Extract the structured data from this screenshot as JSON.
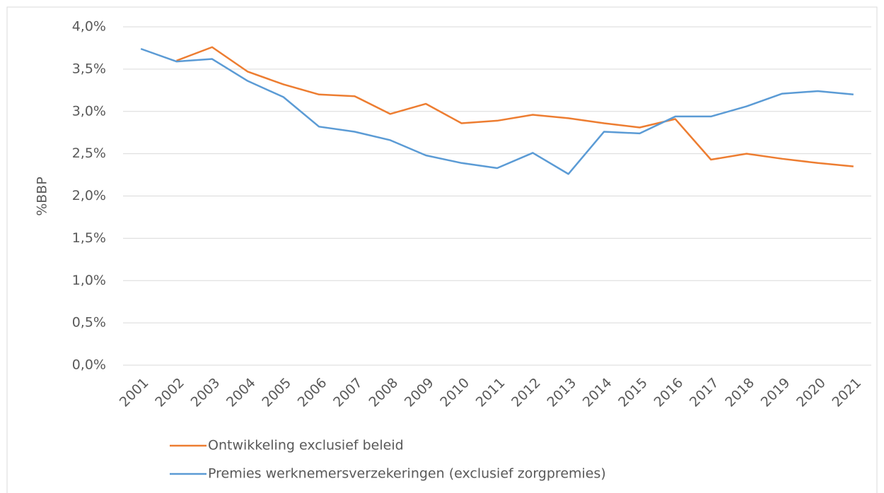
{
  "chart_data": {
    "type": "line",
    "y_label": "%BBP",
    "categories": [
      "2001",
      "2002",
      "2003",
      "2004",
      "2005",
      "2006",
      "2007",
      "2008",
      "2009",
      "2010",
      "2011",
      "2012",
      "2013",
      "2014",
      "2015",
      "2016",
      "2017",
      "2018",
      "2019",
      "2020",
      "2021"
    ],
    "series": [
      {
        "name": "Ontwikkeling exclusief beleid",
        "color": "#ed7d31",
        "values": [
          null,
          3.6,
          3.76,
          3.47,
          3.32,
          3.2,
          3.18,
          2.97,
          3.09,
          2.86,
          2.89,
          2.96,
          2.92,
          2.86,
          2.81,
          2.91,
          2.43,
          2.5,
          2.44,
          2.39,
          2.35
        ]
      },
      {
        "name": "Premies werknemersverzekeringen (exclusief zorgpremies)",
        "color": "#5b9bd5",
        "values": [
          3.74,
          3.59,
          3.62,
          3.36,
          3.17,
          2.82,
          2.76,
          2.66,
          2.48,
          2.39,
          2.33,
          2.51,
          2.26,
          2.76,
          2.74,
          2.94,
          2.94,
          3.06,
          3.21,
          3.24,
          3.2
        ]
      }
    ],
    "ylim": [
      0,
      4
    ],
    "yticks": [
      {
        "value": 0,
        "label": "0,0%"
      },
      {
        "value": 0.5,
        "label": "0,5%"
      },
      {
        "value": 1,
        "label": "1,0%"
      },
      {
        "value": 1.5,
        "label": "1,5%"
      },
      {
        "value": 2,
        "label": "2,0%"
      },
      {
        "value": 2.5,
        "label": "2,5%"
      },
      {
        "value": 3,
        "label": "3,0%"
      },
      {
        "value": 3.5,
        "label": "3,5%"
      },
      {
        "value": 4,
        "label": "4,0%"
      }
    ],
    "grid": true,
    "legend": "bottom"
  }
}
